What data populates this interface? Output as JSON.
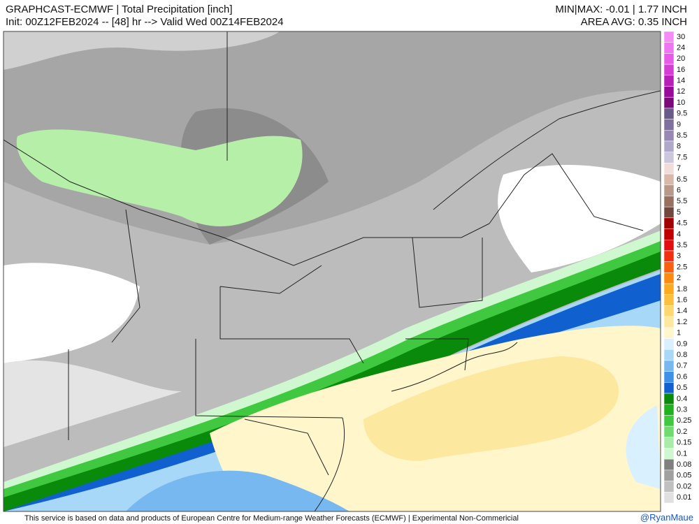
{
  "header": {
    "title": "GRAPHCAST-ECMWF | Total Precipitation [inch]",
    "subtitle": "Init: 00Z12FEB2024 -- [48] hr --> Valid Wed 00Z14FEB2024",
    "minmax": "MIN|MAX: -0.01 | 1.77 INCH",
    "area_avg": "AREA AVG: 0.35 INCH"
  },
  "colorbar": {
    "levels": [
      {
        "label": "30",
        "color": "#f58cf5"
      },
      {
        "label": "24",
        "color": "#f075f0"
      },
      {
        "label": "20",
        "color": "#e85ae8"
      },
      {
        "label": "16",
        "color": "#d63cd6"
      },
      {
        "label": "14",
        "color": "#b81fb8"
      },
      {
        "label": "12",
        "color": "#9a0a9a"
      },
      {
        "label": "10",
        "color": "#7a0a7a"
      },
      {
        "label": "9.5",
        "color": "#6a5a8a"
      },
      {
        "label": "9",
        "color": "#8070a0"
      },
      {
        "label": "8.5",
        "color": "#9888b5"
      },
      {
        "label": "8",
        "color": "#b0a8c8"
      },
      {
        "label": "7.5",
        "color": "#ccc8dc"
      },
      {
        "label": "7",
        "color": "#f0dcd8"
      },
      {
        "label": "6.5",
        "color": "#d8b8a8"
      },
      {
        "label": "6",
        "color": "#b89888"
      },
      {
        "label": "5.5",
        "color": "#987060"
      },
      {
        "label": "5",
        "color": "#704840"
      },
      {
        "label": "4.5",
        "color": "#a00000"
      },
      {
        "label": "4",
        "color": "#c00000"
      },
      {
        "label": "3.5",
        "color": "#e01010"
      },
      {
        "label": "3",
        "color": "#f03010"
      },
      {
        "label": "2.5",
        "color": "#f86010"
      },
      {
        "label": "2",
        "color": "#fa8a10"
      },
      {
        "label": "1.8",
        "color": "#fcaa20"
      },
      {
        "label": "1.6",
        "color": "#fcc040"
      },
      {
        "label": "1.4",
        "color": "#fdd870"
      },
      {
        "label": "1.2",
        "color": "#fde8a0"
      },
      {
        "label": "1",
        "color": "#fff6cc"
      },
      {
        "label": "0.9",
        "color": "#d8f0ff"
      },
      {
        "label": "0.8",
        "color": "#a8d8f8"
      },
      {
        "label": "0.7",
        "color": "#78b8f0"
      },
      {
        "label": "0.6",
        "color": "#4090e8"
      },
      {
        "label": "0.5",
        "color": "#1060d0"
      },
      {
        "label": "0.4",
        "color": "#0a8a0a"
      },
      {
        "label": "0.3",
        "color": "#20b020"
      },
      {
        "label": "0.25",
        "color": "#40c840"
      },
      {
        "label": "0.2",
        "color": "#70dc70"
      },
      {
        "label": "0.15",
        "color": "#a8eca8"
      },
      {
        "label": "0.1",
        "color": "#d0f8d0"
      },
      {
        "label": "0.08",
        "color": "#808080"
      },
      {
        "label": "0.05",
        "color": "#a0a0a0"
      },
      {
        "label": "0.02",
        "color": "#c0c0c0"
      },
      {
        "label": "0.01",
        "color": "#e0e0e0"
      }
    ]
  },
  "footer": {
    "note": "This service is based on data and products of European Centre for Medium-range Weather Forecasts (ECMWF) | Experimental Non-Commericial",
    "credit": "@RyanMaue"
  }
}
